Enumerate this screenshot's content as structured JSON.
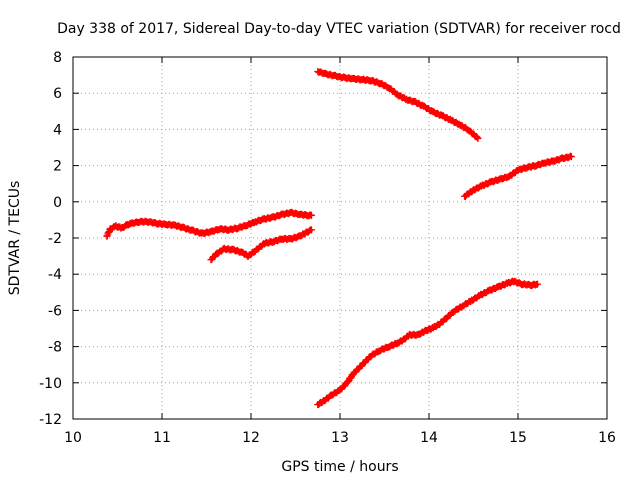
{
  "chart_data": {
    "type": "scatter",
    "title": "Day 338 of 2017, Sidereal Day-to-day VTEC variation (SDTVAR) for receiver rocd",
    "xlabel": "GPS time / hours",
    "ylabel": "SDTVAR / TECUs",
    "xlim": [
      10,
      16
    ],
    "ylim": [
      -12,
      8
    ],
    "xticks": [
      10,
      11,
      12,
      13,
      14,
      15,
      16
    ],
    "yticks": [
      -12,
      -10,
      -8,
      -6,
      -4,
      -2,
      0,
      2,
      4,
      6,
      8
    ],
    "grid": true,
    "marker": "plus",
    "color": "#ff0000",
    "series": [
      {
        "name": "track-a",
        "points": [
          [
            10.38,
            -1.9
          ],
          [
            10.42,
            -1.5
          ],
          [
            10.48,
            -1.35
          ],
          [
            10.55,
            -1.45
          ],
          [
            10.6,
            -1.3
          ],
          [
            10.65,
            -1.2
          ],
          [
            10.75,
            -1.1
          ],
          [
            10.85,
            -1.1
          ],
          [
            10.95,
            -1.2
          ],
          [
            11.05,
            -1.25
          ],
          [
            11.15,
            -1.3
          ],
          [
            11.25,
            -1.45
          ],
          [
            11.35,
            -1.6
          ],
          [
            11.45,
            -1.75
          ],
          [
            11.55,
            -1.65
          ],
          [
            11.65,
            -1.5
          ],
          [
            11.75,
            -1.55
          ],
          [
            11.85,
            -1.45
          ],
          [
            11.95,
            -1.3
          ],
          [
            12.05,
            -1.1
          ],
          [
            12.15,
            -0.95
          ],
          [
            12.25,
            -0.85
          ],
          [
            12.35,
            -0.7
          ],
          [
            12.45,
            -0.6
          ],
          [
            12.55,
            -0.7
          ],
          [
            12.65,
            -0.75
          ],
          [
            12.68,
            -0.75
          ]
        ]
      },
      {
        "name": "track-b",
        "points": [
          [
            11.55,
            -3.2
          ],
          [
            11.62,
            -2.85
          ],
          [
            11.7,
            -2.6
          ],
          [
            11.8,
            -2.65
          ],
          [
            11.9,
            -2.8
          ],
          [
            11.97,
            -3.0
          ],
          [
            12.05,
            -2.7
          ],
          [
            12.15,
            -2.3
          ],
          [
            12.25,
            -2.2
          ],
          [
            12.35,
            -2.05
          ],
          [
            12.45,
            -2.05
          ],
          [
            12.55,
            -1.9
          ],
          [
            12.62,
            -1.7
          ],
          [
            12.68,
            -1.55
          ]
        ]
      },
      {
        "name": "track-c",
        "points": [
          [
            12.75,
            7.2
          ],
          [
            12.85,
            7.05
          ],
          [
            12.95,
            6.95
          ],
          [
            13.05,
            6.85
          ],
          [
            13.15,
            6.8
          ],
          [
            13.25,
            6.75
          ],
          [
            13.35,
            6.7
          ],
          [
            13.45,
            6.55
          ],
          [
            13.55,
            6.3
          ],
          [
            13.65,
            5.9
          ],
          [
            13.75,
            5.65
          ],
          [
            13.85,
            5.5
          ],
          [
            13.95,
            5.25
          ],
          [
            14.05,
            4.95
          ],
          [
            14.15,
            4.75
          ],
          [
            14.25,
            4.5
          ],
          [
            14.35,
            4.25
          ],
          [
            14.45,
            3.95
          ],
          [
            14.55,
            3.5
          ]
        ]
      },
      {
        "name": "track-d",
        "points": [
          [
            14.4,
            0.3
          ],
          [
            14.5,
            0.65
          ],
          [
            14.6,
            0.9
          ],
          [
            14.7,
            1.1
          ],
          [
            14.8,
            1.25
          ],
          [
            14.9,
            1.4
          ],
          [
            15.0,
            1.75
          ],
          [
            15.1,
            1.9
          ],
          [
            15.2,
            2.0
          ],
          [
            15.3,
            2.15
          ],
          [
            15.4,
            2.25
          ],
          [
            15.5,
            2.4
          ],
          [
            15.6,
            2.5
          ]
        ]
      },
      {
        "name": "track-e",
        "points": [
          [
            12.75,
            -11.2
          ],
          [
            12.82,
            -11.0
          ],
          [
            12.9,
            -10.7
          ],
          [
            13.0,
            -10.4
          ],
          [
            13.08,
            -10.0
          ],
          [
            13.15,
            -9.5
          ],
          [
            13.25,
            -9.0
          ],
          [
            13.35,
            -8.5
          ],
          [
            13.45,
            -8.2
          ],
          [
            13.55,
            -8.0
          ],
          [
            13.65,
            -7.8
          ],
          [
            13.72,
            -7.6
          ],
          [
            13.78,
            -7.35
          ],
          [
            13.88,
            -7.35
          ],
          [
            13.95,
            -7.15
          ],
          [
            14.05,
            -6.95
          ],
          [
            14.12,
            -6.75
          ],
          [
            14.2,
            -6.4
          ],
          [
            14.28,
            -6.05
          ],
          [
            14.38,
            -5.75
          ],
          [
            14.48,
            -5.45
          ],
          [
            14.58,
            -5.15
          ],
          [
            14.68,
            -4.9
          ],
          [
            14.78,
            -4.7
          ],
          [
            14.88,
            -4.5
          ],
          [
            14.95,
            -4.4
          ],
          [
            15.05,
            -4.55
          ],
          [
            15.15,
            -4.6
          ],
          [
            15.22,
            -4.55
          ]
        ]
      }
    ]
  }
}
